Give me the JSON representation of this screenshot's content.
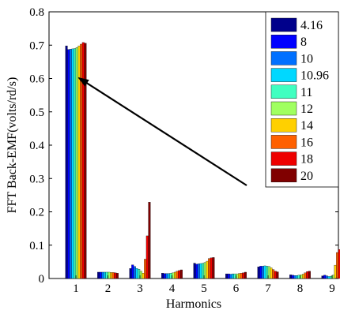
{
  "chart_data": {
    "type": "bar",
    "title": "",
    "xlabel": "Harmonics",
    "ylabel": "FFT Back-EMF(volts/rd/s)",
    "ylim": [
      0,
      0.8
    ],
    "yticks": [
      "0",
      "0.1",
      "0.2",
      "0.3",
      "0.4",
      "0.5",
      "0.6",
      "0.7",
      "0.8"
    ],
    "categories": [
      "1",
      "2",
      "3",
      "4",
      "5",
      "6",
      "7",
      "8",
      "9"
    ],
    "grid": false,
    "legend_position": "top-right",
    "annotation": "arrow pointing to harmonic 1 bars",
    "series": [
      {
        "name": "4.16",
        "color": "#00008b",
        "values": [
          0.698,
          0.019,
          0.03,
          0.016,
          0.046,
          0.014,
          0.035,
          0.011,
          0.008
        ]
      },
      {
        "name": "8",
        "color": "#0000ff",
        "values": [
          0.687,
          0.019,
          0.041,
          0.015,
          0.043,
          0.014,
          0.037,
          0.01,
          0.01
        ]
      },
      {
        "name": "10",
        "color": "#0070ff",
        "values": [
          0.688,
          0.019,
          0.036,
          0.015,
          0.044,
          0.013,
          0.037,
          0.009,
          0.008
        ]
      },
      {
        "name": "10.96",
        "color": "#00d8ff",
        "values": [
          0.689,
          0.019,
          0.03,
          0.015,
          0.045,
          0.014,
          0.038,
          0.009,
          0.006
        ]
      },
      {
        "name": "11",
        "color": "#40ffc0",
        "values": [
          0.69,
          0.019,
          0.028,
          0.016,
          0.046,
          0.014,
          0.037,
          0.01,
          0.007
        ]
      },
      {
        "name": "12",
        "color": "#a0ff60",
        "values": [
          0.693,
          0.019,
          0.022,
          0.017,
          0.048,
          0.014,
          0.036,
          0.011,
          0.01
        ]
      },
      {
        "name": "14",
        "color": "#ffd000",
        "values": [
          0.698,
          0.018,
          0.016,
          0.019,
          0.052,
          0.015,
          0.032,
          0.013,
          0.04
        ]
      },
      {
        "name": "16",
        "color": "#ff6000",
        "values": [
          0.703,
          0.018,
          0.058,
          0.022,
          0.06,
          0.016,
          0.027,
          0.017,
          0.078
        ]
      },
      {
        "name": "18",
        "color": "#ee0000",
        "values": [
          0.708,
          0.017,
          0.128,
          0.024,
          0.062,
          0.017,
          0.022,
          0.021,
          0.087
        ]
      },
      {
        "name": "20",
        "color": "#800000",
        "values": [
          0.706,
          0.016,
          0.229,
          0.026,
          0.063,
          0.019,
          0.02,
          0.022,
          0.012
        ]
      }
    ]
  }
}
